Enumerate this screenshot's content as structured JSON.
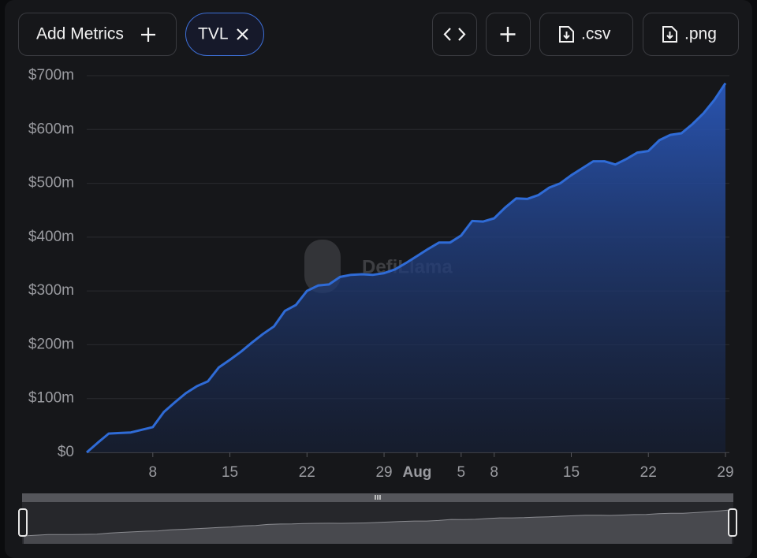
{
  "buttons": {
    "add_metrics": "Add Metrics",
    "tvl": "TVL",
    "csv": ".csv",
    "png": ".png"
  },
  "watermark": "DefiLlama",
  "chart_data": {
    "type": "area",
    "x": [
      2,
      3,
      4,
      5,
      6,
      7,
      8,
      9,
      10,
      11,
      12,
      13,
      14,
      15,
      16,
      17,
      18,
      19,
      20,
      21,
      22,
      23,
      24,
      25,
      26,
      27,
      28,
      29,
      30,
      31,
      32,
      33,
      34,
      35,
      36,
      37,
      38,
      39,
      40,
      41,
      42,
      43,
      44,
      45,
      46,
      47,
      48,
      49,
      50,
      51,
      52,
      53,
      54,
      55,
      56,
      57,
      58,
      59,
      60
    ],
    "series": [
      {
        "name": "TVL",
        "color": "#2f6bd6",
        "values": [
          0,
          18,
          35,
          36,
          37,
          42,
          47,
          75,
          93,
          110,
          123,
          132,
          158,
          172,
          187,
          204,
          220,
          234,
          263,
          274,
          300,
          310,
          312,
          326,
          330,
          331,
          330,
          333,
          340,
          352,
          365,
          378,
          390,
          390,
          403,
          430,
          429,
          435,
          455,
          472,
          471,
          478,
          492,
          500,
          515,
          528,
          541,
          541,
          535,
          545,
          557,
          560,
          580,
          590,
          593,
          610,
          630,
          655,
          686
        ]
      }
    ],
    "xlim": [
      2,
      60
    ],
    "xticks": [
      {
        "value": 8,
        "label": "8"
      },
      {
        "value": 15,
        "label": "15"
      },
      {
        "value": 22,
        "label": "22"
      },
      {
        "value": 29,
        "label": "29"
      },
      {
        "value": 32,
        "label": "Aug"
      },
      {
        "value": 36,
        "label": "5"
      },
      {
        "value": 39,
        "label": "8"
      },
      {
        "value": 46,
        "label": "15"
      },
      {
        "value": 53,
        "label": "22"
      },
      {
        "value": 60,
        "label": "29"
      }
    ],
    "ylim": [
      0,
      700
    ],
    "yticks": [
      {
        "value": 0,
        "label": "$0"
      },
      {
        "value": 100,
        "label": "$100m"
      },
      {
        "value": 200,
        "label": "$200m"
      },
      {
        "value": 300,
        "label": "$300m"
      },
      {
        "value": 400,
        "label": "$400m"
      },
      {
        "value": 500,
        "label": "$500m"
      },
      {
        "value": 600,
        "label": "$600m"
      },
      {
        "value": 700,
        "label": "$700m"
      }
    ],
    "grid": true
  }
}
